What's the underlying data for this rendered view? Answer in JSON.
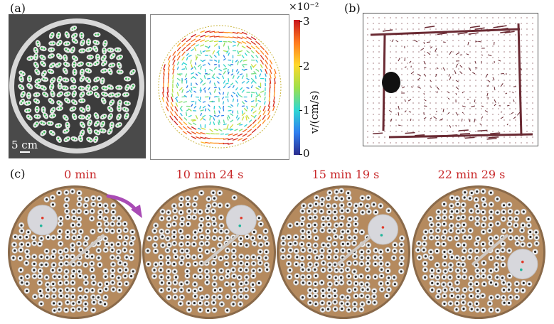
{
  "panels": {
    "a_label": "(a)",
    "b_label": "(b)",
    "c_label": "(c)"
  },
  "scale_bar": "5 cm",
  "colorbar": {
    "exponent_label": "×10⁻²",
    "ticks": [
      "3",
      "2",
      "1",
      "0"
    ],
    "axis_title": "v/(cm/s)"
  },
  "frames": [
    {
      "time": "0 min",
      "disk_angle_deg": 225,
      "rod_angle_deg": -40
    },
    {
      "time": "10 min 24 s",
      "disk_angle_deg": 315,
      "rod_angle_deg": -40
    },
    {
      "time": "15 min 19 s",
      "disk_angle_deg": 330,
      "rod_angle_deg": -40
    },
    {
      "time": "22 min 29 s",
      "disk_angle_deg": 15,
      "rod_angle_deg": -40
    }
  ],
  "colors": {
    "time_label": "#c8282a",
    "arrow": "#a94bb5",
    "beige": "#b58a5e"
  }
}
